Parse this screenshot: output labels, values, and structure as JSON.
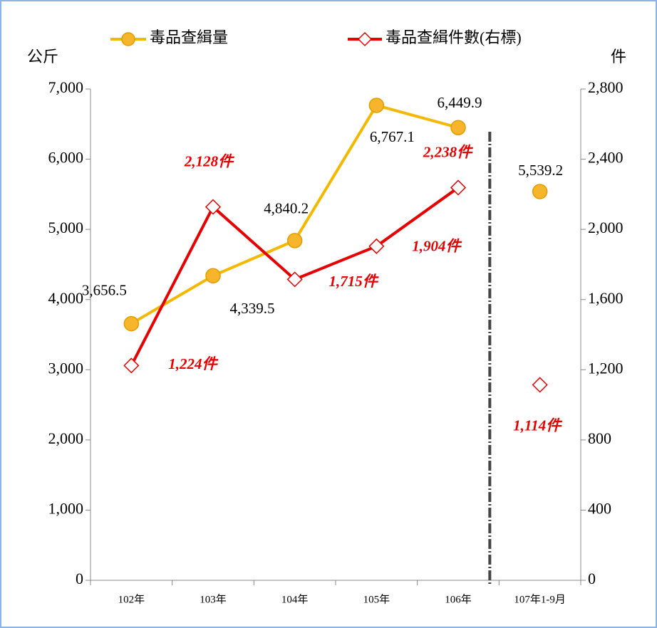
{
  "chart_data": {
    "type": "line",
    "y_label": "公斤",
    "y2_label": "件",
    "categories": [
      "102年",
      "103年",
      "104年",
      "105年",
      "106年",
      "107年1-9月"
    ],
    "series": [
      {
        "name": "毒品查緝量",
        "color": "#f5b800",
        "marker_color": "#f7b52c",
        "values": [
          3656.5,
          4339.5,
          4840.2,
          6767.1,
          6449.9,
          5539.2
        ],
        "value_labels": [
          "3,656.5",
          "4,339.5",
          "4,840.2",
          "6,767.1",
          "6,449.9",
          "5,539.2"
        ]
      },
      {
        "name": "毒品查緝件數(右標)",
        "color": "#e60000",
        "axis": "y2",
        "values": [
          1224,
          2128,
          1715,
          1904,
          2238,
          1114
        ],
        "value_labels": [
          "1,224件",
          "2,128件",
          "1,715件",
          "1,904件",
          "2,238件",
          "1,114件"
        ]
      }
    ],
    "ylim": [
      0,
      7000
    ],
    "yticks": [
      0,
      {
        "value": 1000,
        "label": "1,000"
      },
      {
        "value": 2000,
        "label": "2,000"
      },
      {
        "value": 3000,
        "label": "3,000"
      },
      {
        "value": 4000,
        "label": "4,000"
      },
      {
        "value": 5000,
        "label": "5,000"
      },
      {
        "value": 6000,
        "label": "6,000"
      },
      {
        "value": 7000,
        "label": "7,000"
      }
    ],
    "y2lim": [
      0,
      2800
    ],
    "y2ticks": [
      0,
      400,
      800,
      {
        "value": 1200,
        "label": "1,200"
      },
      {
        "value": 1600,
        "label": "1,600"
      },
      {
        "value": 2000,
        "label": "2,000"
      },
      {
        "value": 2400,
        "label": "2,400"
      },
      {
        "value": 2800,
        "label": "2,800"
      }
    ]
  }
}
